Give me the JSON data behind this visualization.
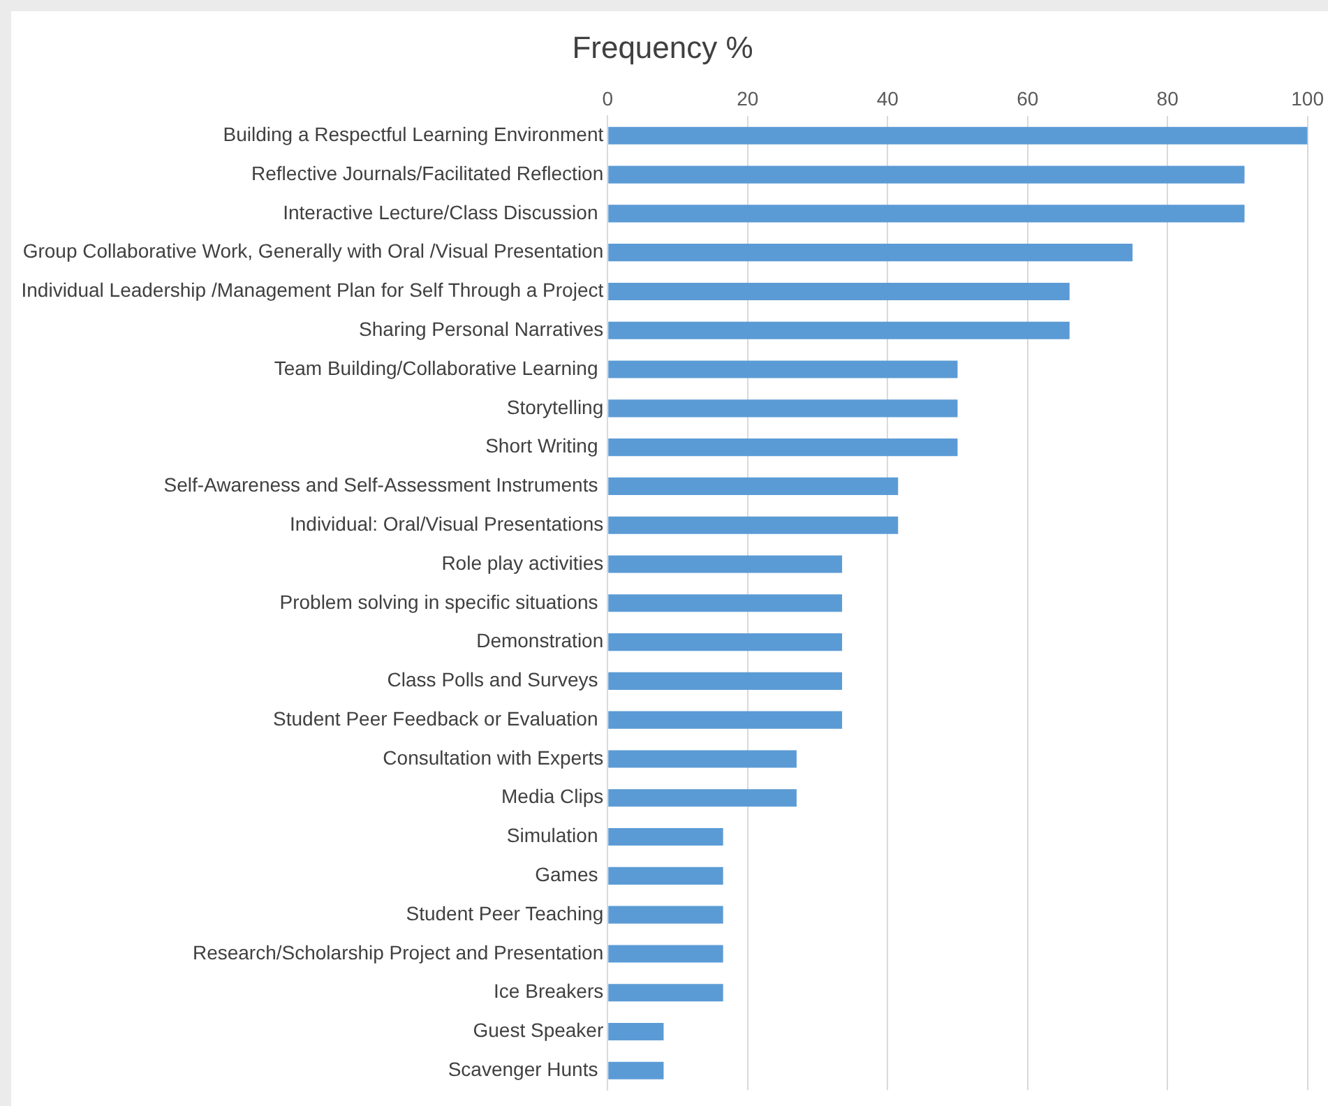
{
  "chart_data": {
    "type": "bar",
    "orientation": "horizontal",
    "title": "Frequency %",
    "categories": [
      "Building a Respectful Learning Environment",
      "Reflective Journals/Facilitated Reflection",
      "Interactive Lecture/Class Discussion ",
      "Group Collaborative Work, Generally with Oral /Visual Presentation",
      "Individual Leadership /Management Plan for Self Through a Project",
      "Sharing Personal Narratives",
      "Team Building/Collaborative Learning ",
      "Storytelling",
      "Short Writing ",
      "Self-Awareness and Self-Assessment Instruments ",
      "Individual: Oral/Visual Presentations",
      "Role play activities",
      "Problem solving in specific situations ",
      "Demonstration",
      "Class Polls and Surveys ",
      "Student Peer Feedback or Evaluation ",
      "Consultation with Experts",
      "Media Clips",
      "Simulation ",
      "Games ",
      "Student Peer Teaching",
      "Research/Scholarship Project and Presentation",
      "Ice Breakers",
      "Guest Speaker",
      "Scavenger Hunts "
    ],
    "values": [
      100,
      91,
      91,
      75,
      66,
      66,
      50,
      50,
      50,
      41.5,
      41.5,
      33.5,
      33.5,
      33.5,
      33.5,
      33.5,
      27,
      27,
      16.5,
      16.5,
      16.5,
      16.5,
      16.5,
      8,
      8
    ],
    "color": "#5b9bd5",
    "xlim": [
      0,
      100
    ],
    "xticks": [
      0,
      20,
      40,
      60,
      80,
      100
    ],
    "grid": "x",
    "legend": false
  }
}
